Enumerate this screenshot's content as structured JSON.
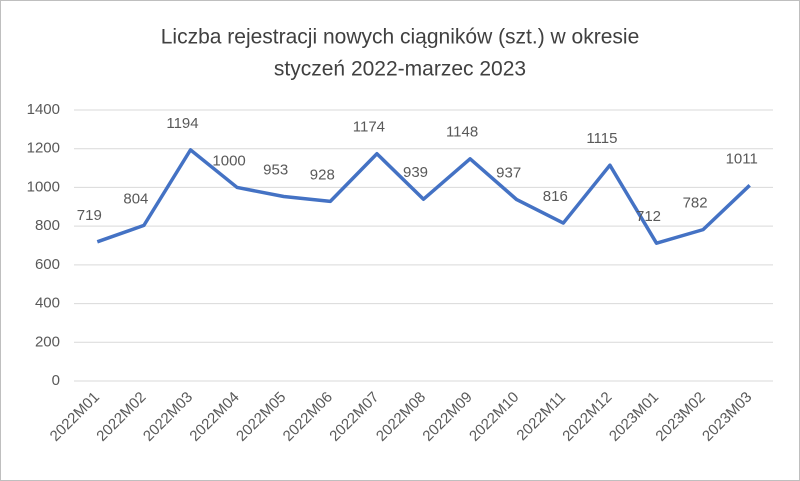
{
  "chart_data": {
    "type": "line",
    "title": [
      "Liczba rejestracji nowych ciągników (szt.) w okresie",
      "styczeń 2022-marzec 2023"
    ],
    "categories": [
      "2022M01",
      "2022M02",
      "2022M03",
      "2022M04",
      "2022M05",
      "2022M06",
      "2022M07",
      "2022M08",
      "2022M09",
      "2022M10",
      "2022M11",
      "2022M12",
      "2023M01",
      "2023M02",
      "2023M03"
    ],
    "values": [
      719,
      804,
      1194,
      1000,
      953,
      928,
      1174,
      939,
      1148,
      937,
      816,
      1115,
      712,
      782,
      1011
    ],
    "color": "#4472c4",
    "ylim": [
      0,
      1400
    ],
    "yticks": [
      0,
      200,
      400,
      600,
      800,
      1000,
      1200,
      1400
    ],
    "grid": true
  }
}
